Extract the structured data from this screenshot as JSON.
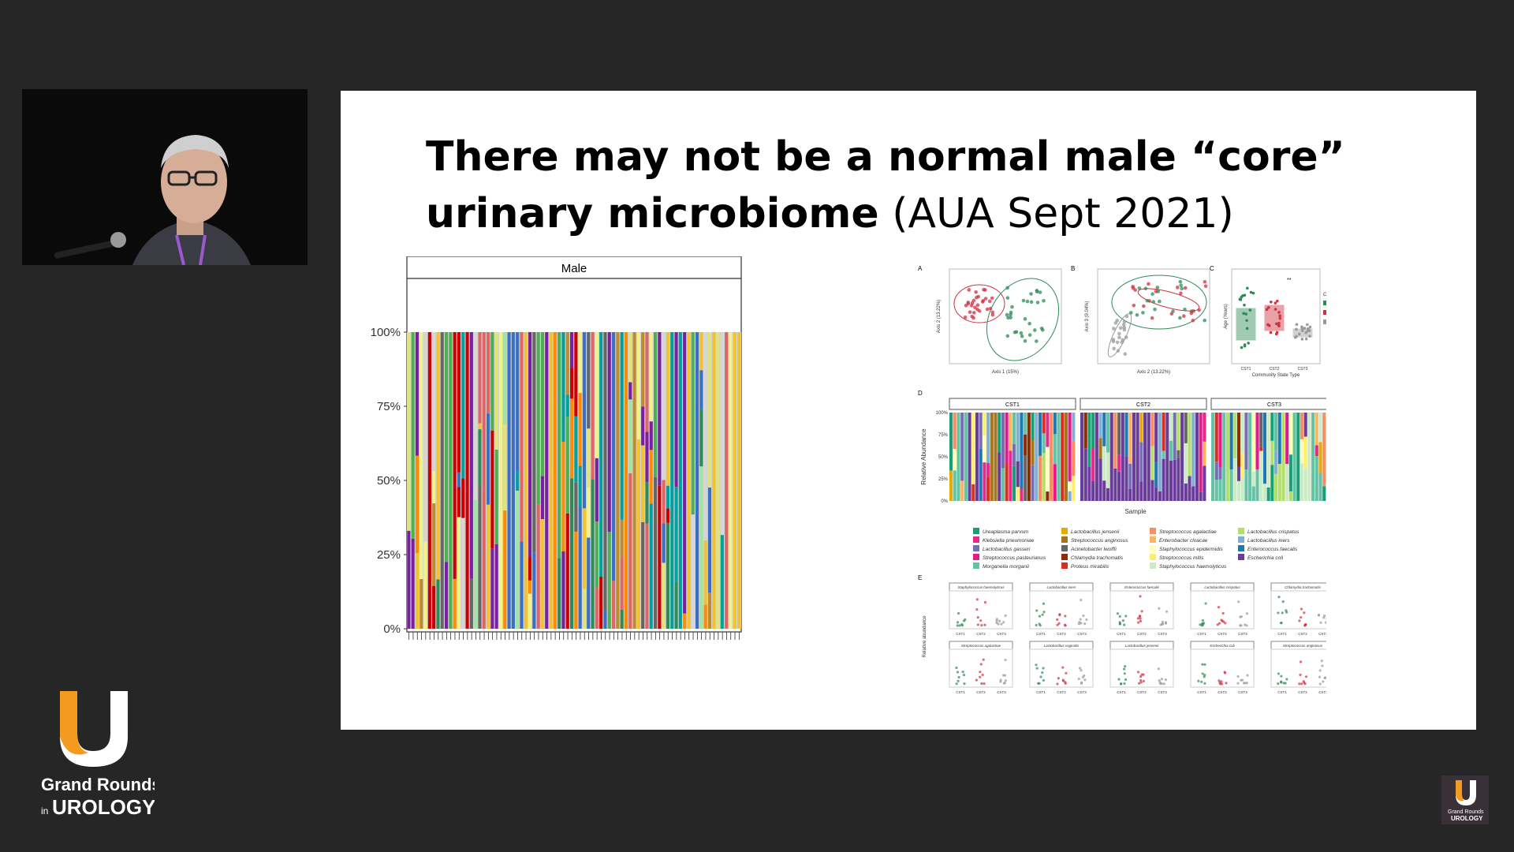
{
  "slide": {
    "title_bold": "There may not be a normal male “core” urinary microbiome",
    "title_light": "(AUA Sept 2021)"
  },
  "brand": {
    "line1": "Grand Rounds",
    "line2_prefix": "in",
    "line2": "UROLOGY",
    "accent": "#f39a1f"
  },
  "chart_data": [
    {
      "type": "bar",
      "stacked": true,
      "title": "",
      "facet_label": "Male",
      "xlabel": "",
      "ylabel": "",
      "ylim": [
        0,
        100
      ],
      "yticks": [
        "0%",
        "25%",
        "50%",
        "75%",
        "100%"
      ],
      "n_samples": 80,
      "palette": [
        "#3b6fc4",
        "#7a1fa2",
        "#f0f28a",
        "#e2e47a",
        "#f1c232",
        "#e06666",
        "#cc0000",
        "#00a0a0",
        "#2e8b57",
        "#ff8c00",
        "#c08b2c",
        "#666666",
        "#9fe6a0",
        "#4caf50",
        "#d6d6d6"
      ]
    },
    {
      "type": "composite",
      "panels": [
        {
          "id": "A",
          "type": "scatter",
          "xlabel": "Axis 1 (15%)",
          "ylabel": "Axis 2 (13.22%)"
        },
        {
          "id": "B",
          "type": "scatter",
          "xlabel": "Axis 2 (13.22%)",
          "ylabel": "Axis 3 (9.04%)"
        },
        {
          "id": "C",
          "type": "box",
          "xlabel": "Community State Type",
          "ylabel": "Age (Years)",
          "categories": [
            "CST1",
            "CST2",
            "CST3"
          ],
          "legend_title": "CST",
          "annotation": "**"
        },
        {
          "id": "D",
          "type": "bar",
          "stacked": true,
          "facets": [
            "CST1",
            "CST2",
            "CST3"
          ],
          "xlabel": "Sample",
          "ylabel": "Relative Abundance",
          "yticks": [
            "0%",
            "25%",
            "50%",
            "75%",
            "100%"
          ]
        },
        {
          "id": "E",
          "type": "box",
          "ylabel": "Relative abundance",
          "categories": [
            "CST1",
            "CST2",
            "CST3"
          ]
        }
      ],
      "legend": [
        {
          "name": "Ureaplasma parvum",
          "color": "#1a9e77"
        },
        {
          "name": "Klebsiella pneumoniae",
          "color": "#e7298a"
        },
        {
          "name": "Lactobacillus gasseri",
          "color": "#7570b3"
        },
        {
          "name": "Streptococcus pasteurianus",
          "color": "#e41a8c"
        },
        {
          "name": "Morganella morganii",
          "color": "#66c2a5"
        },
        {
          "name": "Lactobacillus jensenii",
          "color": "#e6ab02"
        },
        {
          "name": "Streptococcus anginosus",
          "color": "#a6761d"
        },
        {
          "name": "Acinetobacter lwoffii",
          "color": "#666666"
        },
        {
          "name": "Chlamydia trachomatis",
          "color": "#8c2d04"
        },
        {
          "name": "Proteus mirabilis",
          "color": "#d7301f"
        },
        {
          "name": "Streptococcus agalactiae",
          "color": "#fc8d62"
        },
        {
          "name": "Enterobacter cloacae",
          "color": "#fdb462"
        },
        {
          "name": "Staphylococcus epidermidis",
          "color": "#ffffb3"
        },
        {
          "name": "Streptococcus mitis",
          "color": "#ffed6f"
        },
        {
          "name": "Staphylococcus haemolyticus",
          "color": "#ccebc5"
        },
        {
          "name": "Lactobacillus crispatus",
          "color": "#b3de69"
        },
        {
          "name": "Lactobacillus iners",
          "color": "#80b1d3"
        },
        {
          "name": "Enterococcus faecalis",
          "color": "#1f78b4"
        },
        {
          "name": "Escherichia coli",
          "color": "#6a3d9a"
        }
      ],
      "small_multiples": [
        "Staphylococcus haemolyticus",
        "Lactobacillus iners",
        "Enterococcus faecalis",
        "Lactobacillus crispatus",
        "Chlamydia trachomatis",
        "Streptococcus agalactiae",
        "Lactobacillus vaginalis",
        "Lactobacillus jensenii",
        "Escherichia coli",
        "Streptococcus anginosus"
      ]
    }
  ]
}
